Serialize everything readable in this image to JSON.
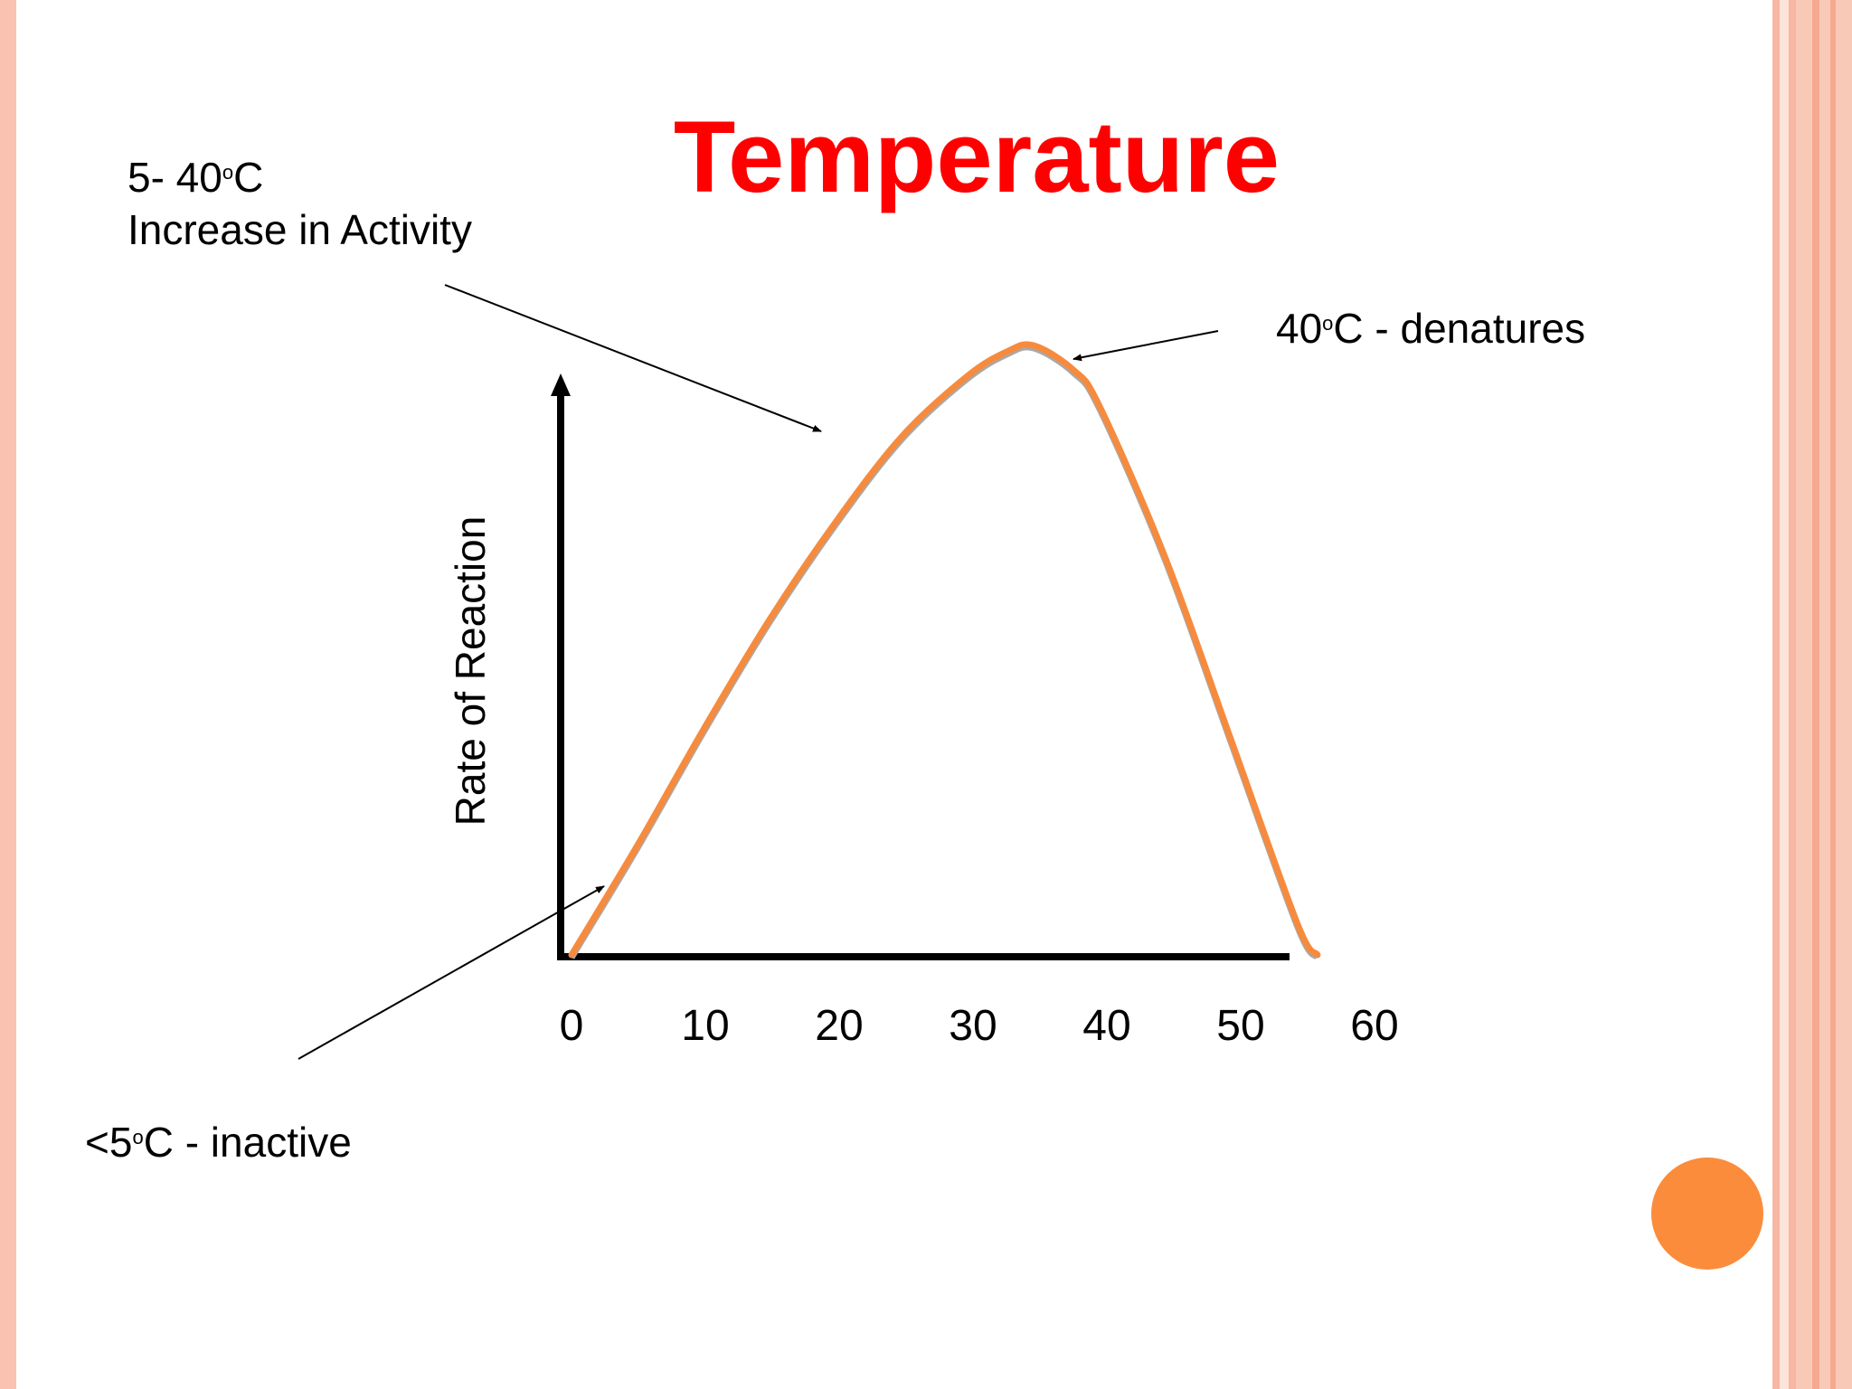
{
  "slide": {
    "title": "Temperature",
    "accent_color": "#fb8c3c",
    "title_color": "#ff0000"
  },
  "annotations": {
    "range_line1_pre": "5- 40",
    "range_line1_sup": "o",
    "range_line1_post": "C",
    "range_line2": "Increase in Activity",
    "peak_pre": "40",
    "peak_sup": "o",
    "peak_post": "C - denatures",
    "low_pre": "<5",
    "low_sup": "o",
    "low_post": "C - inactive"
  },
  "chart_data": {
    "type": "line",
    "title": "Temperature",
    "xlabel": "",
    "ylabel": "Rate of Reaction",
    "categories": [
      "0",
      "10",
      "20",
      "30",
      "40",
      "50",
      "60"
    ],
    "xlim": [
      0,
      60
    ],
    "ylim": [
      0,
      100
    ],
    "y_ticks_shown": false,
    "grid": false,
    "series": [
      {
        "color": "#f68b3e",
        "points": [
          {
            "x": 0,
            "y": 0
          },
          {
            "x": 5,
            "y": 18
          },
          {
            "x": 10,
            "y": 37
          },
          {
            "x": 15,
            "y": 55
          },
          {
            "x": 20,
            "y": 71
          },
          {
            "x": 25,
            "y": 85
          },
          {
            "x": 30,
            "y": 95
          },
          {
            "x": 33,
            "y": 99
          },
          {
            "x": 35,
            "y": 100
          },
          {
            "x": 38,
            "y": 96
          },
          {
            "x": 40,
            "y": 90
          },
          {
            "x": 45,
            "y": 65
          },
          {
            "x": 50,
            "y": 35
          },
          {
            "x": 55,
            "y": 5
          },
          {
            "x": 56.5,
            "y": 0
          }
        ]
      }
    ]
  }
}
